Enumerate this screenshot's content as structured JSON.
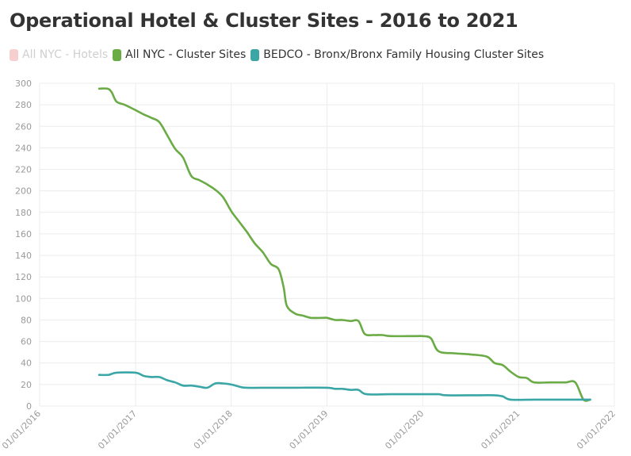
{
  "title": "Operational Hotel & Cluster Sites - 2016 to 2021",
  "colors": {
    "hotels": "#f6cfcf",
    "cluster": "#6aab45",
    "bedco": "#3aa6a6",
    "grid": "#ececec",
    "axis_text": "#9a9a9a"
  },
  "legend": [
    {
      "label": "All NYC - Hotels",
      "color": "#f6cfcf",
      "state": "hidden"
    },
    {
      "label": "All NYC - Cluster Sites",
      "color": "#6aab45",
      "state": "visible"
    },
    {
      "label": "BEDCO - Bronx/Bronx Family Housing Cluster Sites",
      "color": "#3aa6a6",
      "state": "visible"
    }
  ],
  "chart_data": {
    "type": "line",
    "title": "Operational Hotel & Cluster Sites - 2016 to 2021",
    "xlabel": "",
    "ylabel": "",
    "ylim": [
      0,
      300
    ],
    "yticks": [
      0,
      20,
      40,
      60,
      80,
      100,
      120,
      140,
      160,
      180,
      200,
      220,
      240,
      260,
      280,
      300
    ],
    "xlim": [
      "2016-01-01",
      "2022-01-01"
    ],
    "xticks": [
      "01/01/2016",
      "01/01/2017",
      "01/01/2018",
      "01/01/2019",
      "01/01/2020",
      "01/01/2021",
      "01/01/2022"
    ],
    "grid": true,
    "legend_position": "top-left",
    "series": [
      {
        "name": "All NYC - Cluster Sites",
        "color": "#6aab45",
        "points": [
          [
            "2016-08-15",
            295
          ],
          [
            "2016-09-15",
            295
          ],
          [
            "2016-10-01",
            292
          ],
          [
            "2016-10-20",
            283
          ],
          [
            "2016-11-20",
            280
          ],
          [
            "2017-01-01",
            275
          ],
          [
            "2017-02-01",
            271
          ],
          [
            "2017-03-01",
            268
          ],
          [
            "2017-04-01",
            264
          ],
          [
            "2017-05-01",
            252
          ],
          [
            "2017-06-01",
            239
          ],
          [
            "2017-07-01",
            231
          ],
          [
            "2017-08-01",
            214
          ],
          [
            "2017-09-01",
            210
          ],
          [
            "2017-10-01",
            206
          ],
          [
            "2017-11-01",
            201
          ],
          [
            "2017-12-01",
            194
          ],
          [
            "2018-01-01",
            181
          ],
          [
            "2018-02-01",
            171
          ],
          [
            "2018-03-01",
            162
          ],
          [
            "2018-04-01",
            151
          ],
          [
            "2018-05-01",
            143
          ],
          [
            "2018-06-01",
            132
          ],
          [
            "2018-07-01",
            127
          ],
          [
            "2018-07-20",
            110
          ],
          [
            "2018-08-01",
            93
          ],
          [
            "2018-09-01",
            86
          ],
          [
            "2018-10-01",
            84
          ],
          [
            "2018-11-01",
            82
          ],
          [
            "2018-12-15",
            82
          ],
          [
            "2019-01-01",
            82
          ],
          [
            "2019-02-01",
            80
          ],
          [
            "2019-03-01",
            80
          ],
          [
            "2019-04-01",
            79
          ],
          [
            "2019-05-01",
            79
          ],
          [
            "2019-05-25",
            67
          ],
          [
            "2019-07-01",
            66
          ],
          [
            "2019-08-01",
            66
          ],
          [
            "2019-09-01",
            65
          ],
          [
            "2019-12-01",
            65
          ],
          [
            "2020-01-01",
            65
          ],
          [
            "2020-02-01",
            63
          ],
          [
            "2020-03-01",
            51
          ],
          [
            "2020-05-01",
            49
          ],
          [
            "2020-07-01",
            48
          ],
          [
            "2020-09-01",
            46
          ],
          [
            "2020-10-01",
            40
          ],
          [
            "2020-11-01",
            38
          ],
          [
            "2020-12-01",
            32
          ],
          [
            "2021-01-01",
            27
          ],
          [
            "2021-02-01",
            26
          ],
          [
            "2021-03-01",
            22
          ],
          [
            "2021-05-01",
            22
          ],
          [
            "2021-06-01",
            22
          ],
          [
            "2021-07-01",
            22
          ],
          [
            "2021-08-05",
            22
          ],
          [
            "2021-09-05",
            6
          ],
          [
            "2021-10-01",
            6
          ]
        ]
      },
      {
        "name": "BEDCO - Bronx/Bronx Family Housing Cluster Sites",
        "color": "#3aa6a6",
        "points": [
          [
            "2016-08-15",
            29
          ],
          [
            "2016-09-20",
            29
          ],
          [
            "2016-10-20",
            31
          ],
          [
            "2017-01-01",
            31
          ],
          [
            "2017-02-01",
            28
          ],
          [
            "2017-03-01",
            27
          ],
          [
            "2017-04-01",
            27
          ],
          [
            "2017-05-01",
            24
          ],
          [
            "2017-06-01",
            22
          ],
          [
            "2017-07-01",
            19
          ],
          [
            "2017-08-01",
            19
          ],
          [
            "2017-09-01",
            18
          ],
          [
            "2017-10-01",
            17
          ],
          [
            "2017-11-01",
            21
          ],
          [
            "2017-12-01",
            21
          ],
          [
            "2018-01-01",
            20
          ],
          [
            "2018-02-01",
            18
          ],
          [
            "2018-03-01",
            17
          ],
          [
            "2018-06-01",
            17
          ],
          [
            "2018-09-01",
            17
          ],
          [
            "2019-01-01",
            17
          ],
          [
            "2019-02-01",
            16
          ],
          [
            "2019-03-01",
            16
          ],
          [
            "2019-04-01",
            15
          ],
          [
            "2019-05-01",
            15
          ],
          [
            "2019-06-01",
            11
          ],
          [
            "2019-09-01",
            11
          ],
          [
            "2020-01-01",
            11
          ],
          [
            "2020-03-01",
            11
          ],
          [
            "2020-04-01",
            10
          ],
          [
            "2020-08-01",
            10
          ],
          [
            "2020-10-01",
            10
          ],
          [
            "2020-11-01",
            9
          ],
          [
            "2020-12-01",
            6
          ],
          [
            "2021-03-01",
            6
          ],
          [
            "2021-06-01",
            6
          ],
          [
            "2021-08-01",
            6
          ],
          [
            "2021-10-01",
            6
          ]
        ]
      }
    ]
  }
}
